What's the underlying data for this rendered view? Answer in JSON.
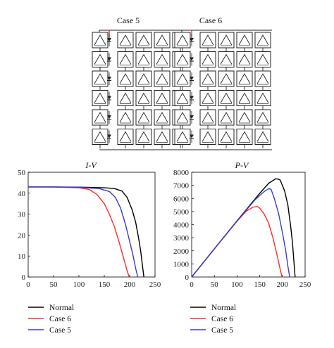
{
  "diagram": {
    "panels": [
      {
        "title": "Case 5",
        "shaded_rows": 6,
        "red_column": 0
      },
      {
        "title": "Case 6",
        "shaded_rows": 6,
        "red_column": 0
      }
    ],
    "grid_rows": 6,
    "grid_cols": 5
  },
  "chart_data": [
    {
      "type": "line",
      "title": "I-V",
      "xlabel": "",
      "ylabel": "",
      "xlim": [
        0,
        250
      ],
      "ylim": [
        0,
        50
      ],
      "xticks": [
        0,
        50,
        100,
        150,
        200,
        250
      ],
      "yticks": [
        0,
        10,
        20,
        30,
        40,
        50
      ],
      "grid": false,
      "series": [
        {
          "name": "Normal",
          "color": "#000000",
          "x": [
            0,
            50,
            100,
            150,
            170,
            185,
            195,
            205,
            212,
            218,
            222,
            226,
            228
          ],
          "y": [
            43,
            43,
            42.9,
            42.6,
            42.2,
            41,
            38,
            32,
            26,
            18,
            12,
            4,
            0
          ]
        },
        {
          "name": "Case 6",
          "color": "#ff2b2b",
          "x": [
            0,
            50,
            100,
            120,
            135,
            150,
            160,
            170,
            180,
            188,
            195,
            199
          ],
          "y": [
            43,
            43,
            42.6,
            41.8,
            39.5,
            35,
            30,
            24,
            16,
            9,
            3,
            0
          ]
        },
        {
          "name": "Case 5",
          "color": "#3a3ad6",
          "x": [
            0,
            50,
            100,
            140,
            160,
            172,
            182,
            192,
            200,
            207,
            212,
            216
          ],
          "y": [
            43,
            43,
            42.8,
            42.2,
            40.8,
            38,
            33,
            25,
            17,
            10,
            4,
            0
          ]
        }
      ]
    },
    {
      "type": "line",
      "title": "P-V",
      "xlabel": "",
      "ylabel": "",
      "xlim": [
        0,
        250
      ],
      "ylim": [
        0,
        8000
      ],
      "xticks": [
        0,
        50,
        100,
        150,
        200,
        250
      ],
      "yticks": [
        0,
        1000,
        2000,
        3000,
        4000,
        5000,
        6000,
        7000,
        8000
      ],
      "grid": false,
      "series": [
        {
          "name": "Normal",
          "color": "#000000",
          "x": [
            0,
            50,
            100,
            150,
            170,
            180,
            185,
            190,
            195,
            205,
            212,
            218,
            222,
            226,
            228
          ],
          "y": [
            0,
            2150,
            4290,
            6390,
            7170,
            7380,
            7500,
            7480,
            7410,
            6560,
            5510,
            3920,
            2660,
            900,
            0
          ]
        },
        {
          "name": "Case 6",
          "color": "#ff2b2b",
          "x": [
            0,
            50,
            100,
            120,
            135,
            145,
            150,
            160,
            170,
            180,
            188,
            195,
            199
          ],
          "y": [
            0,
            2150,
            4260,
            5020,
            5330,
            5380,
            5250,
            4800,
            4080,
            2880,
            1690,
            590,
            0
          ]
        },
        {
          "name": "Case 5",
          "color": "#3a3ad6",
          "x": [
            0,
            50,
            100,
            140,
            160,
            170,
            175,
            182,
            192,
            200,
            207,
            212,
            216
          ],
          "y": [
            0,
            2150,
            4280,
            5910,
            6530,
            6750,
            6700,
            6010,
            4800,
            3400,
            2070,
            850,
            0
          ]
        }
      ]
    }
  ]
}
